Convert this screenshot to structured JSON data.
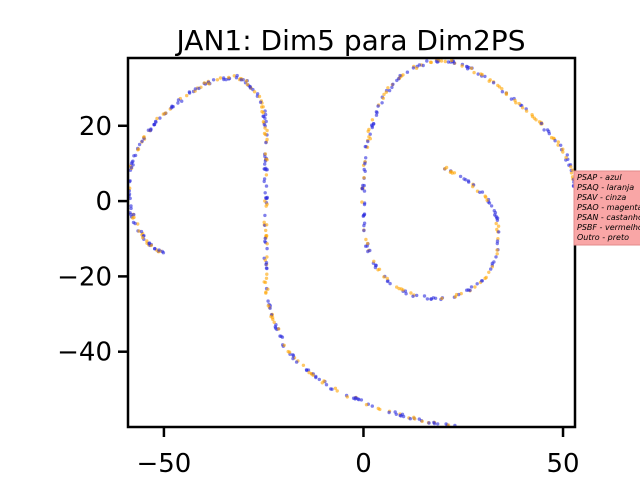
{
  "chart_data": {
    "type": "scatter",
    "title": "JAN1: Dim5 para Dim2PS",
    "xlabel": "",
    "ylabel": "",
    "xlim": [
      -59,
      53
    ],
    "ylim": [
      -60,
      38
    ],
    "xticks": [
      -50,
      0,
      50
    ],
    "yticks": [
      20,
      0,
      -20,
      -40
    ],
    "xtick_labels": [
      "−50",
      "0",
      "50"
    ],
    "ytick_labels": [
      "20",
      "0",
      "−20",
      "−40"
    ],
    "grid": false,
    "legend": {
      "placement": "right",
      "entries": [
        "PSAP - azul",
        "PSAQ - laranja",
        "PSAV - cinza",
        "PSAO - magenta",
        "PSAN - castanho",
        "PSBF - vermelho",
        "Outro - preto"
      ]
    },
    "colors": {
      "blue": "#2b2bdd",
      "orange": "#ffa500",
      "legend_bg": "#f9a6a6"
    },
    "series": [
      {
        "name": "PSAP - azul",
        "color": "#2b2bdd",
        "curve": [
          [
            -50,
            -14
          ],
          [
            -53,
            -12
          ],
          [
            -55,
            -10
          ],
          [
            -57,
            -6
          ],
          [
            -58.5,
            -2
          ],
          [
            -59,
            3
          ],
          [
            -58.5,
            8
          ],
          [
            -57,
            13
          ],
          [
            -55,
            17
          ],
          [
            -52,
            21
          ],
          [
            -48,
            25
          ],
          [
            -44,
            28.5
          ],
          [
            -40,
            31
          ],
          [
            -36,
            32.5
          ],
          [
            -32,
            33
          ],
          [
            -29,
            31.5
          ],
          [
            -26.5,
            28
          ],
          [
            -25,
            24
          ],
          [
            -24.5,
            20
          ],
          [
            -24.5,
            15
          ],
          [
            -24.5,
            10
          ],
          [
            -24.5,
            4
          ],
          [
            -24.5,
            -3
          ],
          [
            -24.5,
            -10
          ],
          [
            -24.5,
            -16
          ],
          [
            -24.5,
            -22
          ],
          [
            -23.5,
            -28
          ],
          [
            -22,
            -33
          ],
          [
            -20,
            -38
          ],
          [
            -17,
            -42
          ],
          [
            -13,
            -46
          ],
          [
            -8,
            -49.5
          ],
          [
            -2,
            -52.5
          ],
          [
            4,
            -55
          ],
          [
            10,
            -57
          ],
          [
            16,
            -58.5
          ],
          [
            21,
            -59.5
          ],
          [
            26,
            -60
          ]
        ],
        "curve2": [
          [
            20,
            9
          ],
          [
            24,
            7
          ],
          [
            28,
            4
          ],
          [
            31.5,
            0
          ],
          [
            33.5,
            -5
          ],
          [
            34,
            -11
          ],
          [
            32.5,
            -17
          ],
          [
            29,
            -22
          ],
          [
            24,
            -25
          ],
          [
            18,
            -26
          ],
          [
            12,
            -25
          ],
          [
            7,
            -22
          ],
          [
            3,
            -17.5
          ],
          [
            1,
            -12
          ],
          [
            0.2,
            -6
          ],
          [
            0,
            0
          ],
          [
            0,
            6
          ],
          [
            0.5,
            12
          ],
          [
            1.5,
            18
          ],
          [
            3,
            23
          ],
          [
            5,
            28
          ],
          [
            8,
            32
          ],
          [
            12,
            35
          ],
          [
            16,
            37
          ],
          [
            20,
            37.5
          ],
          [
            24,
            36.5
          ],
          [
            28,
            34.5
          ],
          [
            32,
            32
          ],
          [
            36,
            28.5
          ],
          [
            40,
            25
          ],
          [
            44,
            21
          ],
          [
            47,
            17.5
          ],
          [
            50,
            13.5
          ],
          [
            52,
            9
          ],
          [
            53,
            5
          ],
          [
            53,
            3
          ]
        ]
      },
      {
        "name": "PSAQ - laranja",
        "color": "#ffa500"
      }
    ]
  }
}
